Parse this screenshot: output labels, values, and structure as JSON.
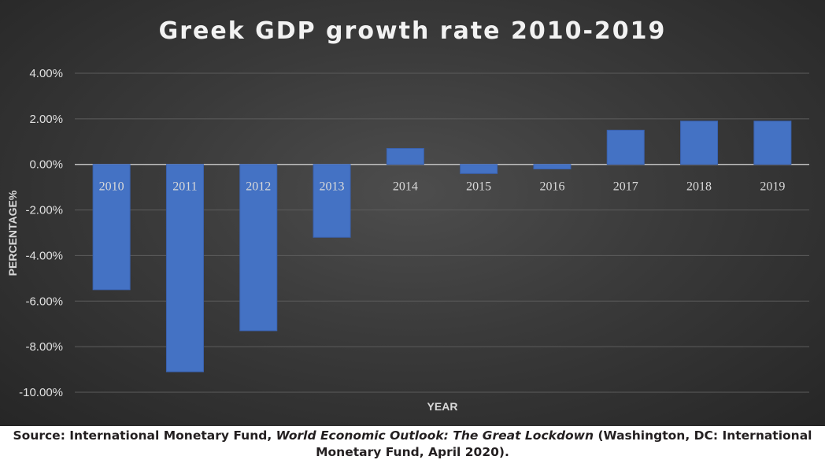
{
  "chart_data": {
    "type": "bar",
    "title": "Greek GDP growth rate 2010-2019",
    "xlabel": "YEAR",
    "ylabel": "PERCENTAGE%",
    "categories": [
      "2010",
      "2011",
      "2012",
      "2013",
      "2014",
      "2015",
      "2016",
      "2017",
      "2018",
      "2019"
    ],
    "values": [
      -5.5,
      -9.1,
      -7.3,
      -3.2,
      0.7,
      -0.4,
      -0.2,
      1.5,
      1.9,
      1.9
    ],
    "ylim": [
      -10,
      4
    ],
    "yticks": [
      4,
      2,
      0,
      -2,
      -4,
      -6,
      -8,
      -10
    ],
    "ytick_labels": [
      "4.00%",
      "2.00%",
      "0.00%",
      "-2.00%",
      "-4.00%",
      "-6.00%",
      "-8.00%",
      "-10.00%"
    ],
    "grid": true,
    "legend": "none",
    "bar_color": "#4472c4",
    "background_color": "#3a3a3a"
  },
  "source": {
    "prefix": "Source: International Monetary Fund, ",
    "title": "World Economic Outlook: The Great Lockdown",
    "suffix": " (Washington, DC: International Monetary Fund, April 2020)."
  }
}
